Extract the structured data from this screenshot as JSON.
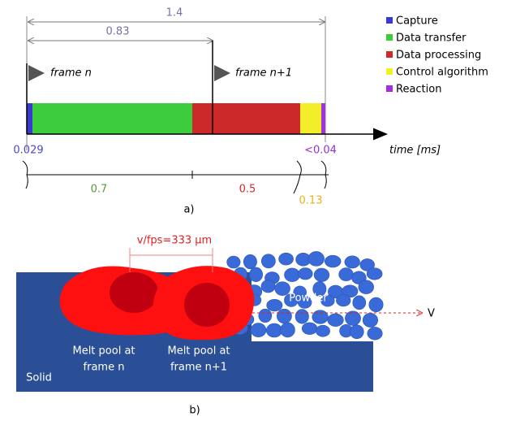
{
  "part_a": {
    "spans": {
      "total": "1.4",
      "frame_interval": "0.83"
    },
    "flags": [
      "frame n",
      "frame n+1"
    ],
    "legend": [
      "Capture",
      "Data transfer",
      "Data processing",
      "Control algorithm",
      "Reaction"
    ],
    "axis_label": "time [ms]",
    "durations": {
      "capture": "0.029",
      "reaction": "<0.04",
      "transfer": "0.7",
      "processing": "0.5",
      "control": "0.13"
    },
    "caption": "a)"
  },
  "part_b": {
    "spacing": "v/fps=333 μm",
    "powder": "Powder",
    "velocity": "V",
    "melt_pool_1": [
      "Melt pool at",
      "frame n"
    ],
    "melt_pool_2": [
      "Melt pool at",
      "frame n+1"
    ],
    "solid": "Solid",
    "caption": "b)"
  }
}
